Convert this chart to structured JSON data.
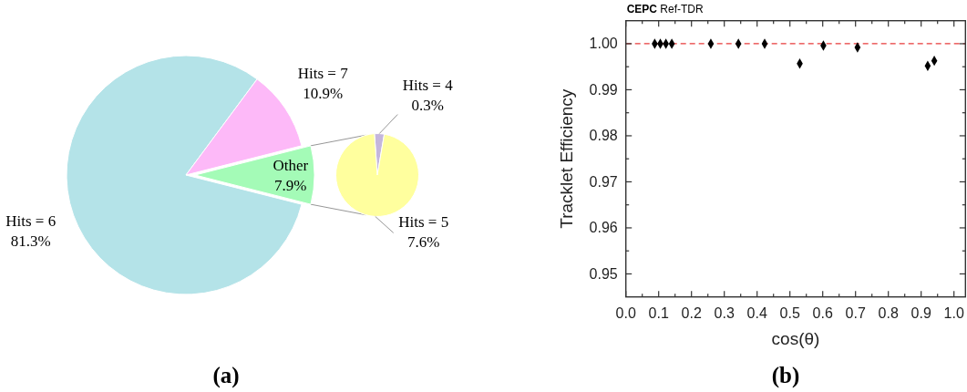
{
  "chart_data": [
    {
      "type": "pie",
      "categories": [
        "Hits = 6",
        "Hits = 7",
        "Other"
      ],
      "values": [
        81.3,
        10.9,
        7.9
      ],
      "colors": [
        "#b4e3e8",
        "#fdb9f8",
        "#a4fbb7"
      ],
      "value_labels": [
        "81.3%",
        "10.9%",
        "7.9%"
      ],
      "annotations": [
        "(a)"
      ]
    },
    {
      "type": "pie",
      "categories": [
        "Hits = 4",
        "Hits = 5"
      ],
      "values": [
        0.3,
        7.6
      ],
      "colors": [
        "#c4b6dc",
        "#ffff9e"
      ],
      "value_labels": [
        "0.3%",
        "7.6%"
      ]
    },
    {
      "type": "scatter",
      "title": "CEPC Ref-TDR",
      "xlabel": "cos(θ)",
      "ylabel": "Tracklet Efficiency",
      "x": [
        0.088,
        0.105,
        0.122,
        0.14,
        0.259,
        0.343,
        0.423,
        0.53,
        0.602,
        0.706,
        0.92,
        0.94
      ],
      "values": [
        1.0,
        1.0,
        1.0,
        1.0,
        1.0,
        1.0,
        1.0,
        0.9957,
        0.9996,
        0.9992,
        0.9952,
        0.9963
      ],
      "color": "#000000",
      "marker": "diamond",
      "xlim": [
        0,
        1.035
      ],
      "ylim": [
        0.945,
        1.005
      ],
      "xticks": [
        {
          "value": 0,
          "label": "0.0"
        },
        {
          "value": 0.05,
          "label": null
        },
        0.1,
        {
          "value": 0.15,
          "label": null
        },
        0.2,
        {
          "value": 0.25,
          "label": null
        },
        0.3,
        {
          "value": 0.35,
          "label": null
        },
        0.4,
        {
          "value": 0.45,
          "label": null
        },
        0.5,
        {
          "value": 0.55,
          "label": null
        },
        0.6,
        {
          "value": 0.65,
          "label": null
        },
        0.7,
        {
          "value": 0.75,
          "label": null
        },
        0.8,
        {
          "value": 0.85,
          "label": null
        },
        0.9,
        {
          "value": 0.95,
          "label": null
        },
        {
          "value": 1,
          "label": "1.0"
        }
      ],
      "yticks": [
        0.95,
        {
          "value": 0.955,
          "label": null
        },
        0.96,
        {
          "value": 0.965,
          "label": null
        },
        0.97,
        {
          "value": 0.975,
          "label": null
        },
        0.98,
        {
          "value": 0.985,
          "label": null
        },
        0.99,
        {
          "value": 0.995,
          "label": null
        },
        {
          "value": 1,
          "label": "1.00"
        }
      ],
      "ref_lines": [
        {
          "axis": "y",
          "value": 1,
          "color": "#e83a3a",
          "line_style": "dashed"
        }
      ],
      "annotations": [
        "(b)"
      ]
    }
  ]
}
